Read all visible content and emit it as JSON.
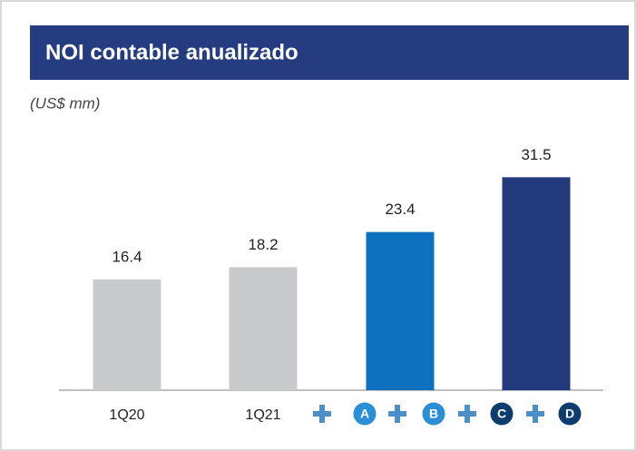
{
  "chart_data": {
    "type": "bar",
    "title": "NOI contable anualizado",
    "subtitle": "(US$ mm)",
    "categories": [
      "1Q20",
      "1Q21",
      null,
      null
    ],
    "values": [
      16.4,
      18.2,
      23.4,
      31.5
    ],
    "colors": [
      "#c9cacc",
      "#c9cacc",
      "#0d71c0",
      "#22397c"
    ],
    "ylim": [
      0,
      40
    ],
    "badges": [
      {
        "label": "A",
        "color": "#2b8fd8"
      },
      {
        "label": "B",
        "color": "#2b8fd8"
      },
      {
        "label": "C",
        "color": "#0d3d6e"
      },
      {
        "label": "D",
        "color": "#0d3d6e"
      }
    ]
  }
}
